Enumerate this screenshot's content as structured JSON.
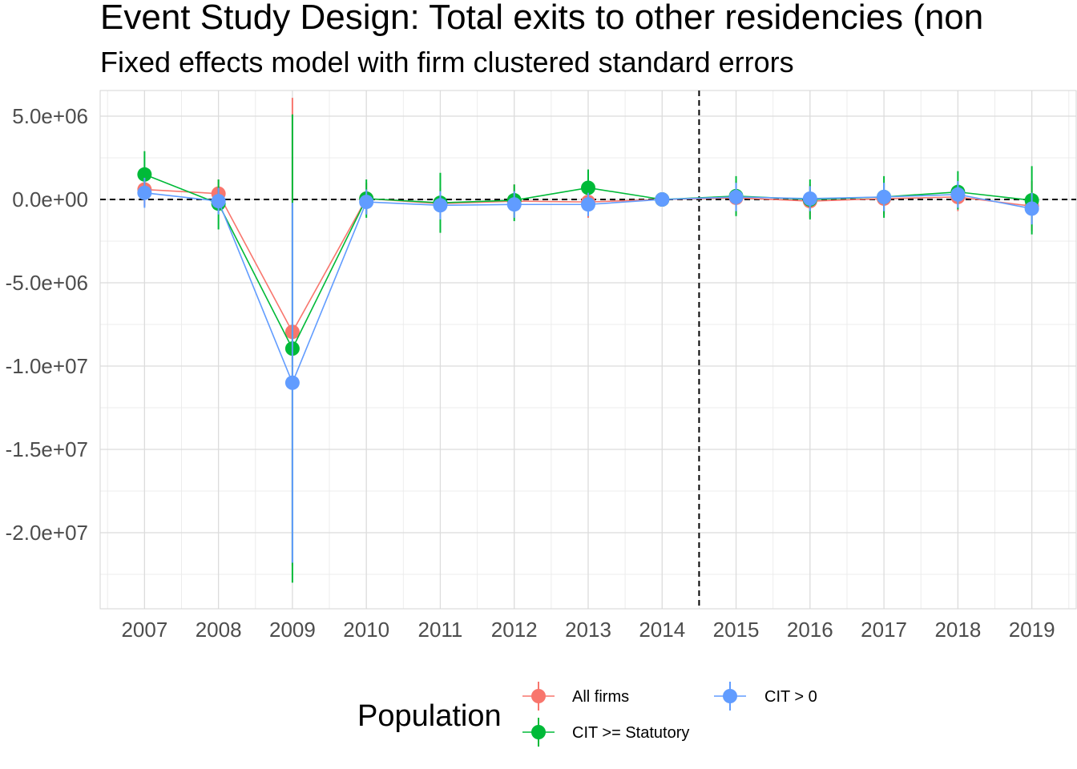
{
  "chart_data": {
    "type": "line",
    "title": "Event Study Design: Total exits to other residencies (non",
    "subtitle": "Fixed effects model with firm clustered standard errors",
    "xlabel": "",
    "ylabel": "",
    "x": [
      2007,
      2008,
      2009,
      2010,
      2011,
      2012,
      2013,
      2014,
      2015,
      2016,
      2017,
      2018,
      2019
    ],
    "x_tick_labels": [
      "2007",
      "2008",
      "2009",
      "2010",
      "2011",
      "2012",
      "2013",
      "2014",
      "2015",
      "2016",
      "2017",
      "2018",
      "2019"
    ],
    "y_ticks": [
      5000000,
      0,
      -5000000,
      -10000000,
      -15000000,
      -20000000
    ],
    "y_tick_labels": [
      "5.0e+06",
      "0.0e+00",
      "-5.0e+06",
      "-1.0e+07",
      "-1.5e+07",
      "-2.0e+07"
    ],
    "ylim": [
      -24200000,
      6500000
    ],
    "grid": true,
    "hline": 0,
    "vline": 2014.5,
    "legend": {
      "title": "Population",
      "position": "bottom"
    },
    "series": [
      {
        "name": "All firms",
        "color": "#F8766D",
        "values": [
          600000,
          350000,
          -7950000,
          50000,
          -250000,
          -100000,
          -150000,
          0,
          100000,
          -100000,
          50000,
          150000,
          -400000
        ],
        "lower": [
          -400000,
          -500000,
          -22000000,
          -900000,
          -1200000,
          -1100000,
          -1100000,
          0,
          -900000,
          -1100000,
          -900000,
          -700000,
          -1900000
        ],
        "upper": [
          1600000,
          1200000,
          6100000,
          1000000,
          700000,
          900000,
          800000,
          0,
          1100000,
          900000,
          1000000,
          1000000,
          1100000
        ]
      },
      {
        "name": "CIT >= Statutory",
        "color": "#00BA38",
        "values": [
          1500000,
          -250000,
          -8950000,
          50000,
          -200000,
          -50000,
          700000,
          0,
          200000,
          0,
          150000,
          450000,
          -50000
        ],
        "lower": [
          100000,
          -1800000,
          -23000000,
          -1100000,
          -2000000,
          -1300000,
          -400000,
          0,
          -1000000,
          -1200000,
          -1100000,
          -600000,
          -2100000
        ],
        "upper": [
          2900000,
          1200000,
          5100000,
          1200000,
          1600000,
          900000,
          1800000,
          0,
          1400000,
          1200000,
          1400000,
          1700000,
          2000000
        ]
      },
      {
        "name": "CIT > 0",
        "color": "#619CFF",
        "values": [
          400000,
          -100000,
          -11000000,
          -150000,
          -350000,
          -300000,
          -300000,
          0,
          150000,
          50000,
          150000,
          300000,
          -550000
        ],
        "lower": [
          -500000,
          -900000,
          -21800000,
          -900000,
          -1200000,
          -1100000,
          -1000000,
          0,
          -700000,
          -700000,
          -700000,
          -500000,
          -1500000
        ],
        "upper": [
          1300000,
          700000,
          -200000,
          600000,
          500000,
          500000,
          400000,
          0,
          1000000,
          800000,
          1000000,
          1100000,
          400000
        ]
      }
    ]
  }
}
